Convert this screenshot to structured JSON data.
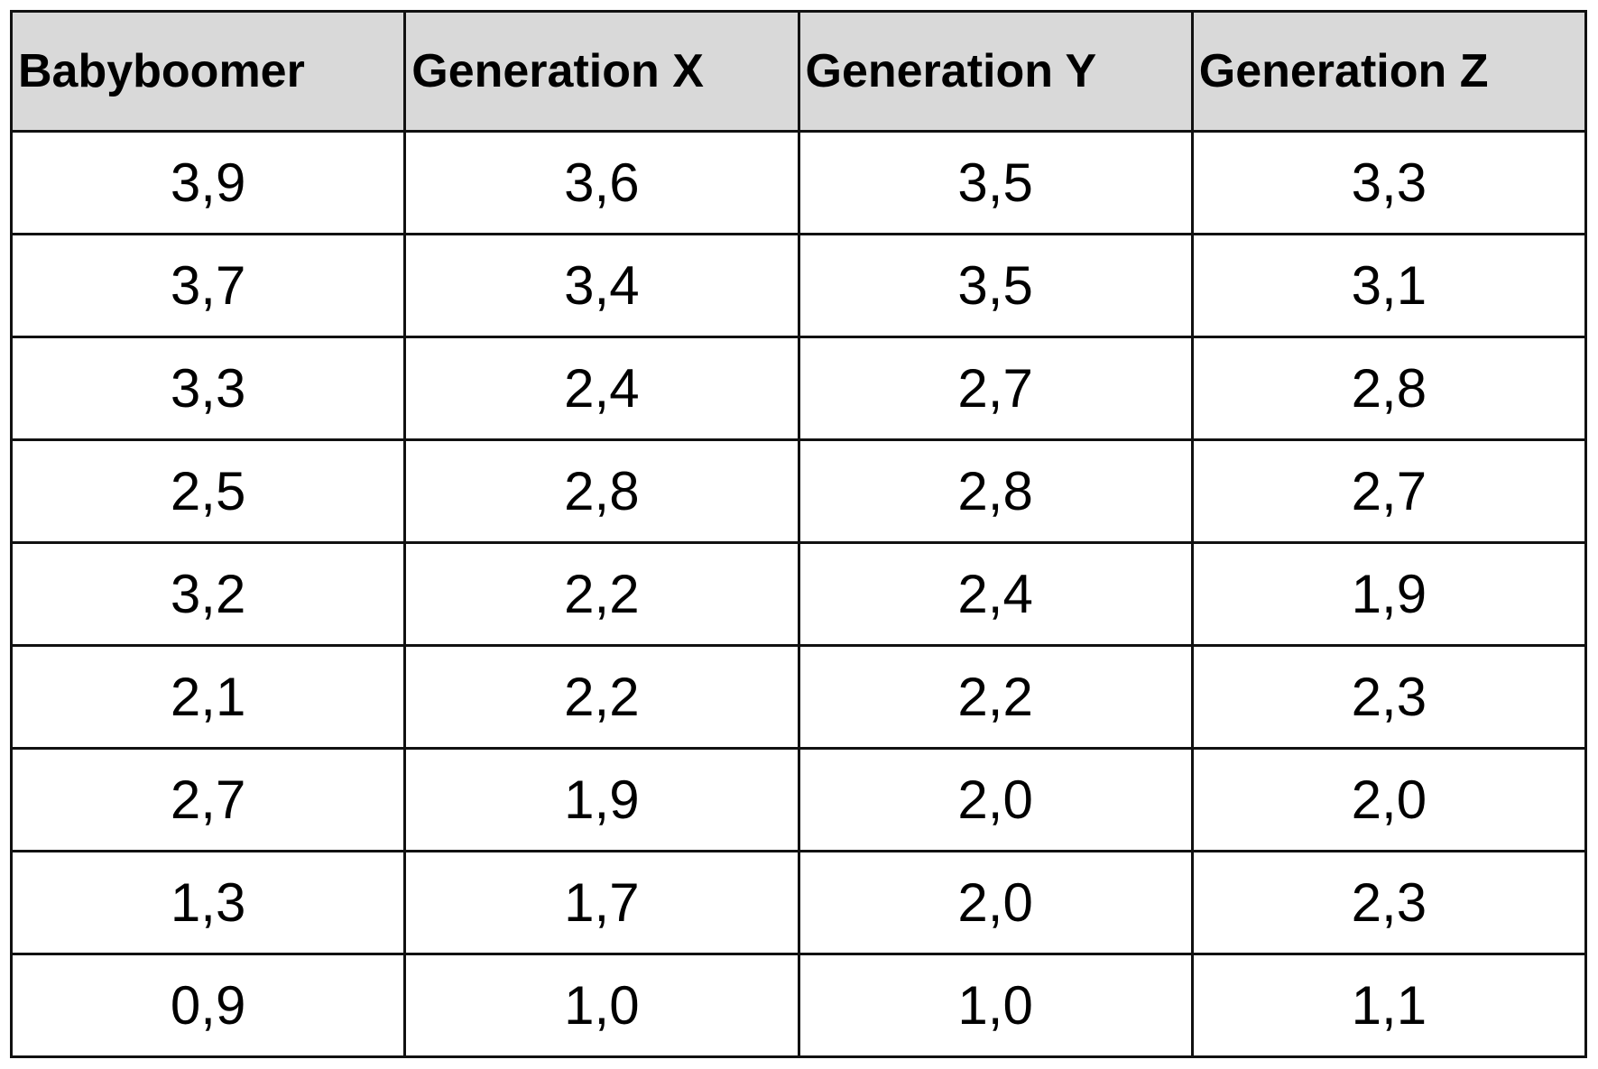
{
  "table": {
    "headers": [
      "Babyboomer",
      "Generation X",
      "Generation Y",
      "Generation Z"
    ],
    "rows": [
      [
        "3,9",
        "3,6",
        "3,5",
        "3,3"
      ],
      [
        "3,7",
        "3,4",
        "3,5",
        "3,1"
      ],
      [
        "3,3",
        "2,4",
        "2,7",
        "2,8"
      ],
      [
        "2,5",
        "2,8",
        "2,8",
        "2,7"
      ],
      [
        "3,2",
        "2,2",
        "2,4",
        "1,9"
      ],
      [
        "2,1",
        "2,2",
        "2,2",
        "2,3"
      ],
      [
        "2,7",
        "1,9",
        "2,0",
        "2,0"
      ],
      [
        "1,3",
        "1,7",
        "2,0",
        "2,3"
      ],
      [
        "0,9",
        "1,0",
        "1,0",
        "1,1"
      ]
    ]
  }
}
